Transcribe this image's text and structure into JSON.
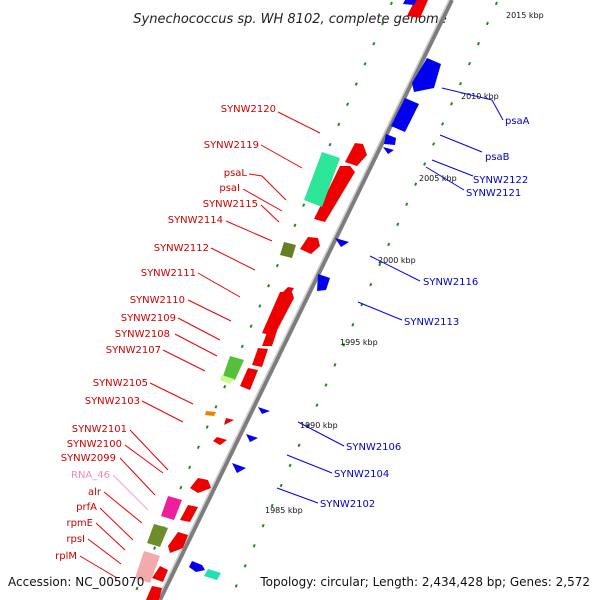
{
  "title": "Synechococcus sp. WH 8102, complete genome",
  "accession": "Accession: NC_005070",
  "summary": "Topology: circular; Length: 2,434,428 bp; Genes: 2,572",
  "colors": {
    "forward": "#ff0000",
    "reverse": "#0000ff",
    "backbone": "#8a8a8a",
    "gc_dots": "#008800",
    "label_forward": "#cc0000",
    "label_reverse": "#0000cc",
    "rna": "#ee88bb"
  },
  "ticks": [
    "2015 kbp",
    "2010 kbp",
    "2005 kbp",
    "2000 kbp",
    "1995 kbp",
    "1990 kbp",
    "1985 kbp"
  ],
  "labels_left": [
    {
      "text": "SYNW2120",
      "color": "#cc0000"
    },
    {
      "text": "SYNW2119",
      "color": "#cc0000"
    },
    {
      "text": "psaL",
      "color": "#cc0000"
    },
    {
      "text": "psaI",
      "color": "#cc0000"
    },
    {
      "text": "SYNW2115",
      "color": "#cc0000"
    },
    {
      "text": "SYNW2114",
      "color": "#cc0000"
    },
    {
      "text": "SYNW2112",
      "color": "#cc0000"
    },
    {
      "text": "SYNW2111",
      "color": "#cc0000"
    },
    {
      "text": "SYNW2110",
      "color": "#cc0000"
    },
    {
      "text": "SYNW2109",
      "color": "#cc0000"
    },
    {
      "text": "SYNW2108",
      "color": "#cc0000"
    },
    {
      "text": "SYNW2107",
      "color": "#cc0000"
    },
    {
      "text": "SYNW2105",
      "color": "#cc0000"
    },
    {
      "text": "SYNW2103",
      "color": "#cc0000"
    },
    {
      "text": "SYNW2101",
      "color": "#cc0000"
    },
    {
      "text": "SYNW2100",
      "color": "#cc0000"
    },
    {
      "text": "SYNW2099",
      "color": "#cc0000"
    },
    {
      "text": "RNA_46",
      "color": "#ee88bb"
    },
    {
      "text": "alr",
      "color": "#cc0000"
    },
    {
      "text": "prfA",
      "color": "#cc0000"
    },
    {
      "text": "rpmE",
      "color": "#cc0000"
    },
    {
      "text": "rpsI",
      "color": "#cc0000"
    },
    {
      "text": "rplM",
      "color": "#cc0000"
    }
  ],
  "labels_right": [
    {
      "text": "psaA",
      "color": "#0000cc"
    },
    {
      "text": "psaB",
      "color": "#0000cc"
    },
    {
      "text": "SYNW2122",
      "color": "#0000cc"
    },
    {
      "text": "SYNW2121",
      "color": "#0000cc"
    },
    {
      "text": "SYNW2116",
      "color": "#0000cc"
    },
    {
      "text": "SYNW2113",
      "color": "#0000cc"
    },
    {
      "text": "SYNW2106",
      "color": "#0000cc"
    },
    {
      "text": "SYNW2104",
      "color": "#0000cc"
    },
    {
      "text": "SYNW2102",
      "color": "#0000cc"
    }
  ]
}
